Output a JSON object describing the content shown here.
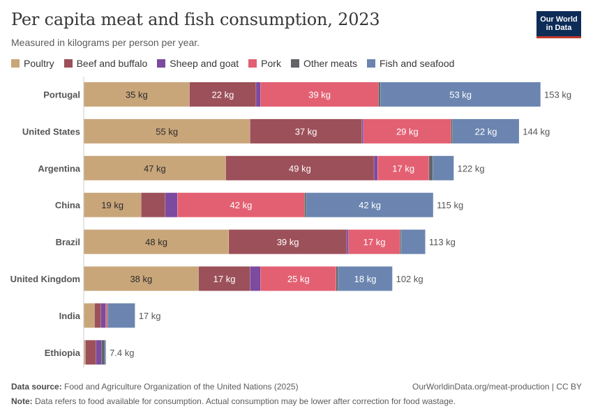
{
  "header": {
    "title": "Per capita meat and fish consumption, 2023",
    "subtitle": "Measured in kilograms per person per year.",
    "logo_line1": "Our World",
    "logo_line2": "in Data"
  },
  "colors": {
    "Poultry": "#c9a67a",
    "Beef and buffalo": "#9c5059",
    "Sheep and goat": "#7c4a9e",
    "Pork": "#e36072",
    "Other meats": "#626468",
    "Fish and seafood": "#6b85b0"
  },
  "chart_data": {
    "type": "bar",
    "orientation": "horizontal",
    "stacked": true,
    "unit": "kg",
    "categories": [
      "Portugal",
      "United States",
      "Argentina",
      "China",
      "Brazil",
      "United Kingdom",
      "India",
      "Ethiopia"
    ],
    "series": [
      {
        "name": "Poultry",
        "values": [
          35,
          55,
          47,
          19,
          48,
          38,
          3.6,
          0.6
        ]
      },
      {
        "name": "Beef and buffalo",
        "values": [
          22,
          37,
          49,
          8,
          39,
          17,
          2.1,
          3.5
        ]
      },
      {
        "name": "Sheep and goat",
        "values": [
          1.5,
          0.5,
          1.2,
          4,
          0.6,
          3.5,
          1.6,
          1.8
        ]
      },
      {
        "name": "Pork",
        "values": [
          39,
          29,
          17,
          42,
          17,
          25,
          0.5,
          0
        ]
      },
      {
        "name": "Other meats",
        "values": [
          0.6,
          0.5,
          1.2,
          0.6,
          0.4,
          0.6,
          0.3,
          1.1
        ]
      },
      {
        "name": "Fish and seafood",
        "values": [
          53,
          22,
          7,
          42,
          8,
          18,
          8.9,
          0.4
        ]
      }
    ],
    "totals": [
      "153 kg",
      "144 kg",
      "122 kg",
      "115 kg",
      "113 kg",
      "102 kg",
      "17 kg",
      "7.4 kg"
    ],
    "legend_position": "top-left",
    "grid": false
  },
  "footer": {
    "source_label": "Data source:",
    "source_text": "Food and Agriculture Organization of the United Nations (2025)",
    "url_text": "OurWorldinData.org/meat-production | CC BY",
    "note_label": "Note:",
    "note_text": "Data refers to food available for consumption. Actual consumption may be lower after correction for food wastage."
  }
}
